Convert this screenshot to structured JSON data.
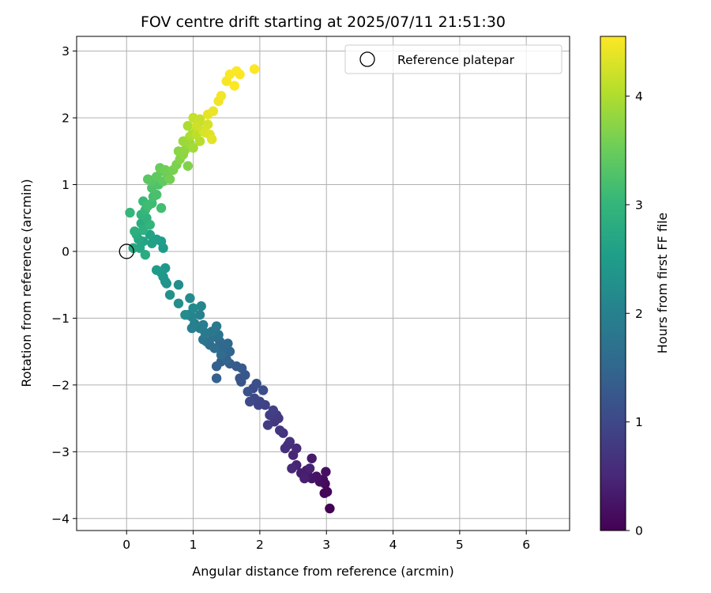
{
  "chart_data": {
    "type": "scatter",
    "title": "FOV centre drift starting at 2025/07/11 21:51:30",
    "xlabel": "Angular distance from reference (arcmin)",
    "ylabel": "Rotation from reference (arcmin)",
    "xlim": [
      -0.75,
      6.65
    ],
    "ylim": [
      -4.18,
      3.22
    ],
    "xticks": [
      "0",
      "1",
      "2",
      "3",
      "4",
      "5",
      "6"
    ],
    "yticks": [
      "−4",
      "−3",
      "−2",
      "−1",
      "0",
      "1",
      "2",
      "3"
    ],
    "grid": true,
    "legend": {
      "location": "upper right",
      "entries": [
        "Reference platepar"
      ]
    },
    "reference_point": {
      "label": "Reference platepar",
      "x": 0,
      "y": 0
    },
    "colorbar": {
      "label": "Hours from first FF file",
      "range": [
        0,
        4.55
      ],
      "ticks": [
        "0",
        "1",
        "2",
        "3",
        "4"
      ],
      "colormap": "viridis"
    },
    "series": [
      {
        "points": [
          [
            3.05,
            -3.85,
            0.0
          ],
          [
            2.97,
            -3.62,
            0.04
          ],
          [
            3.01,
            -3.6,
            0.07
          ],
          [
            2.98,
            -3.48,
            0.1
          ],
          [
            2.95,
            -3.42,
            0.13
          ],
          [
            2.9,
            -3.45,
            0.16
          ],
          [
            2.99,
            -3.3,
            0.19
          ],
          [
            2.85,
            -3.37,
            0.22
          ],
          [
            2.78,
            -3.4,
            0.25
          ],
          [
            2.72,
            -3.35,
            0.28
          ],
          [
            2.78,
            -3.1,
            0.31
          ],
          [
            2.7,
            -3.28,
            0.34
          ],
          [
            2.62,
            -3.32,
            0.37
          ],
          [
            2.67,
            -3.4,
            0.4
          ],
          [
            2.75,
            -3.25,
            0.43
          ],
          [
            2.55,
            -3.2,
            0.46
          ],
          [
            2.5,
            -3.05,
            0.49
          ],
          [
            2.48,
            -3.25,
            0.52
          ],
          [
            2.55,
            -2.95,
            0.55
          ],
          [
            2.42,
            -2.9,
            0.58
          ],
          [
            2.38,
            -2.95,
            0.61
          ],
          [
            2.45,
            -2.85,
            0.64
          ],
          [
            2.35,
            -2.72,
            0.67
          ],
          [
            2.3,
            -2.68,
            0.7
          ],
          [
            2.22,
            -2.55,
            0.73
          ],
          [
            2.28,
            -2.5,
            0.76
          ],
          [
            2.25,
            -2.45,
            0.79
          ],
          [
            2.12,
            -2.6,
            0.82
          ],
          [
            2.15,
            -2.45,
            0.85
          ],
          [
            2.2,
            -2.38,
            0.88
          ],
          [
            2.08,
            -2.3,
            0.91
          ],
          [
            2.0,
            -2.25,
            0.94
          ],
          [
            1.98,
            -2.3,
            0.97
          ],
          [
            1.92,
            -2.2,
            1.0
          ],
          [
            1.85,
            -2.25,
            1.03
          ],
          [
            1.9,
            -2.05,
            1.06
          ],
          [
            2.05,
            -2.08,
            1.09
          ],
          [
            1.95,
            -1.98,
            1.12
          ],
          [
            1.82,
            -2.1,
            1.15
          ],
          [
            1.72,
            -1.95,
            1.18
          ],
          [
            1.7,
            -1.9,
            1.21
          ],
          [
            1.78,
            -1.85,
            1.24
          ],
          [
            1.73,
            -1.75,
            1.27
          ],
          [
            1.65,
            -1.72,
            1.3
          ],
          [
            1.55,
            -1.68,
            1.33
          ],
          [
            1.42,
            -1.65,
            1.36
          ],
          [
            1.35,
            -1.72,
            1.39
          ],
          [
            1.35,
            -1.9,
            1.42
          ],
          [
            1.5,
            -1.62,
            1.45
          ],
          [
            1.55,
            -1.5,
            1.48
          ],
          [
            1.45,
            -1.45,
            1.51
          ],
          [
            1.52,
            -1.38,
            1.54
          ],
          [
            1.4,
            -1.35,
            1.57
          ],
          [
            1.42,
            -1.55,
            1.6
          ],
          [
            1.32,
            -1.45,
            1.63
          ],
          [
            1.25,
            -1.4,
            1.66
          ],
          [
            1.2,
            -1.35,
            1.69
          ],
          [
            1.3,
            -1.28,
            1.72
          ],
          [
            1.38,
            -1.25,
            1.75
          ],
          [
            1.15,
            -1.32,
            1.78
          ],
          [
            1.28,
            -1.2,
            1.81
          ],
          [
            1.35,
            -1.12,
            1.84
          ],
          [
            1.18,
            -1.22,
            1.87
          ],
          [
            1.1,
            -1.15,
            1.9
          ],
          [
            1.15,
            -1.1,
            1.93
          ],
          [
            1.02,
            -1.08,
            1.96
          ],
          [
            0.98,
            -1.15,
            1.99
          ],
          [
            1.1,
            -0.95,
            2.02
          ],
          [
            0.98,
            -0.98,
            2.05
          ],
          [
            0.92,
            -0.95,
            2.08
          ],
          [
            1.12,
            -0.82,
            2.11
          ],
          [
            1.0,
            -0.85,
            2.14
          ],
          [
            0.95,
            -0.7,
            2.17
          ],
          [
            0.88,
            -0.95,
            2.2
          ],
          [
            0.78,
            -0.78,
            2.23
          ],
          [
            0.78,
            -0.5,
            2.26
          ],
          [
            0.65,
            -0.65,
            2.29
          ],
          [
            0.58,
            -0.45,
            2.32
          ],
          [
            0.6,
            -0.48,
            2.35
          ],
          [
            0.55,
            -0.38,
            2.38
          ],
          [
            0.58,
            -0.25,
            2.41
          ],
          [
            0.52,
            -0.32,
            2.44
          ],
          [
            0.45,
            -0.28,
            2.47
          ],
          [
            0.55,
            0.05,
            2.5
          ],
          [
            0.52,
            0.15,
            2.53
          ],
          [
            0.45,
            0.18,
            2.56
          ],
          [
            0.38,
            0.12,
            2.59
          ],
          [
            0.35,
            0.25,
            2.62
          ],
          [
            0.25,
            0.15,
            2.65
          ],
          [
            0.2,
            0.05,
            2.68
          ],
          [
            0.18,
            0.18,
            2.71
          ],
          [
            0.1,
            0.05,
            2.74
          ],
          [
            0.15,
            0.25,
            2.77
          ],
          [
            0.28,
            -0.05,
            2.8
          ],
          [
            0.22,
            0.42,
            2.83
          ],
          [
            0.12,
            0.3,
            2.86
          ],
          [
            0.25,
            0.32,
            2.89
          ],
          [
            0.3,
            0.5,
            2.92
          ],
          [
            0.22,
            0.55,
            2.95
          ],
          [
            0.35,
            0.4,
            2.98
          ],
          [
            0.05,
            0.58,
            3.01
          ],
          [
            0.28,
            0.62,
            3.04
          ],
          [
            0.25,
            0.75,
            3.07
          ],
          [
            0.38,
            0.72,
            3.1
          ],
          [
            0.32,
            0.68,
            3.13
          ],
          [
            0.52,
            0.65,
            3.16
          ],
          [
            0.4,
            0.82,
            3.19
          ],
          [
            0.45,
            0.85,
            3.22
          ],
          [
            0.38,
            0.95,
            3.25
          ],
          [
            0.48,
            1.0,
            3.28
          ],
          [
            0.42,
            1.08,
            3.31
          ],
          [
            0.38,
            1.05,
            3.34
          ],
          [
            0.32,
            1.08,
            3.37
          ],
          [
            0.45,
            1.12,
            3.4
          ],
          [
            0.55,
            1.05,
            3.43
          ],
          [
            0.52,
            1.2,
            3.46
          ],
          [
            0.5,
            1.25,
            3.49
          ],
          [
            0.62,
            1.12,
            3.52
          ],
          [
            0.58,
            1.22,
            3.55
          ],
          [
            0.65,
            1.08,
            3.58
          ],
          [
            0.7,
            1.22,
            3.61
          ],
          [
            0.75,
            1.3,
            3.64
          ],
          [
            0.92,
            1.28,
            3.67
          ],
          [
            0.8,
            1.38,
            3.7
          ],
          [
            0.78,
            1.5,
            3.73
          ],
          [
            0.85,
            1.45,
            3.76
          ],
          [
            0.88,
            1.52,
            3.79
          ],
          [
            0.92,
            1.6,
            3.82
          ],
          [
            0.85,
            1.65,
            3.85
          ],
          [
            0.95,
            1.62,
            3.88
          ],
          [
            1.0,
            1.55,
            3.91
          ],
          [
            0.95,
            1.72,
            3.94
          ],
          [
            0.92,
            1.88,
            3.97
          ],
          [
            0.98,
            1.75,
            4.0
          ],
          [
            1.05,
            1.82,
            4.03
          ],
          [
            1.1,
            1.65,
            4.06
          ],
          [
            1.05,
            1.75,
            4.09
          ],
          [
            1.08,
            1.92,
            4.12
          ],
          [
            1.0,
            2.0,
            4.15
          ],
          [
            1.1,
            1.98,
            4.18
          ],
          [
            1.05,
            1.88,
            4.21
          ],
          [
            1.15,
            1.8,
            4.24
          ],
          [
            1.22,
            1.9,
            4.27
          ],
          [
            1.18,
            1.78,
            4.3
          ],
          [
            1.25,
            1.75,
            4.33
          ],
          [
            1.28,
            1.68,
            4.36
          ],
          [
            1.22,
            2.05,
            4.39
          ],
          [
            1.3,
            2.1,
            4.42
          ],
          [
            1.38,
            2.25,
            4.45
          ],
          [
            1.42,
            2.33,
            4.48
          ],
          [
            1.5,
            2.55,
            4.51
          ],
          [
            1.55,
            2.65,
            4.53
          ],
          [
            1.65,
            2.7,
            4.54
          ],
          [
            1.7,
            2.65,
            4.55
          ],
          [
            1.62,
            2.48,
            4.55
          ],
          [
            1.92,
            2.73,
            4.55
          ]
        ]
      }
    ]
  }
}
